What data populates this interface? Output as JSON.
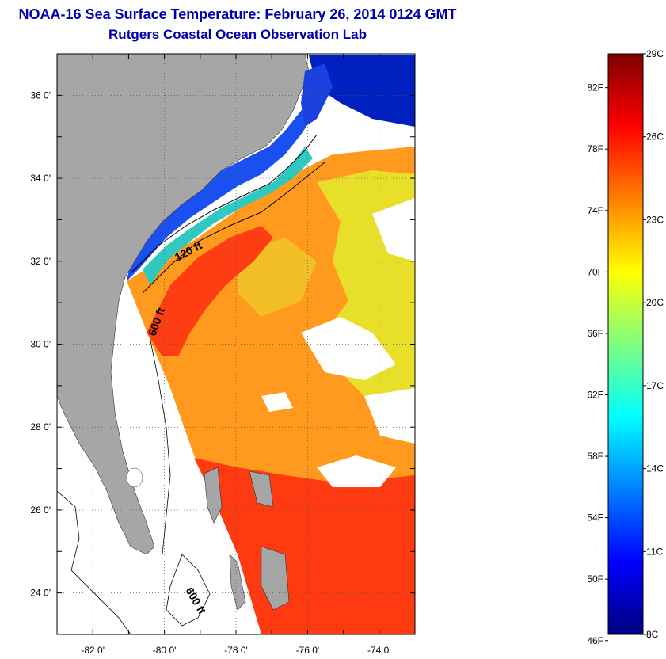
{
  "header": {
    "title": "NOAA-16 Sea Surface Temperature:  February 26, 2014 0124 GMT",
    "subtitle": "Rutgers Coastal Ocean Observation Lab"
  },
  "map": {
    "lat_range": [
      23,
      37
    ],
    "lon_range": [
      -83,
      -73
    ],
    "lat_ticks": [
      {
        "lat": 36,
        "label": "36 0'"
      },
      {
        "lat": 34,
        "label": "34 0'"
      },
      {
        "lat": 32,
        "label": "32 0'"
      },
      {
        "lat": 30,
        "label": "30 0'"
      },
      {
        "lat": 28,
        "label": "28 0'"
      },
      {
        "lat": 26,
        "label": "26 0'"
      },
      {
        "lat": 24,
        "label": "24 0'"
      }
    ],
    "lon_ticks": [
      {
        "lon": -82,
        "label": "-82 0'"
      },
      {
        "lon": -80,
        "label": "-80 0'"
      },
      {
        "lon": -78,
        "label": "-78 0'"
      },
      {
        "lon": -76,
        "label": "-76 0'"
      },
      {
        "lon": -74,
        "label": "-74 0'"
      }
    ],
    "contour_labels": [
      "120 ft",
      "600 ft",
      "600 ft"
    ],
    "colors": {
      "land": "#a6a6a6",
      "cloud": "#ffffff",
      "gulf_stream": "#ff3010",
      "warm": "#ff8c1a",
      "mild": "#f0e020",
      "cool": "#40d0a0",
      "cold": "#0030e0"
    }
  },
  "colorbar": {
    "min_c": 8,
    "max_c": 29,
    "fahrenheit_labels": [
      "82F",
      "78F",
      "74F",
      "70F",
      "66F",
      "62F",
      "58F",
      "54F",
      "50F",
      "46F"
    ],
    "fahrenheit_values": [
      82,
      78,
      74,
      70,
      66,
      62,
      58,
      54,
      50,
      46
    ],
    "celsius_labels": [
      "29C",
      "26C",
      "23C",
      "20C",
      "17C",
      "14C",
      "11C",
      "8C"
    ],
    "celsius_values": [
      29,
      26,
      23,
      20,
      17,
      14,
      11,
      8
    ],
    "stops": [
      "#000080",
      "#0000ff",
      "#0080ff",
      "#00ffff",
      "#80ff80",
      "#ffff00",
      "#ff8000",
      "#ff0000",
      "#800000"
    ]
  }
}
